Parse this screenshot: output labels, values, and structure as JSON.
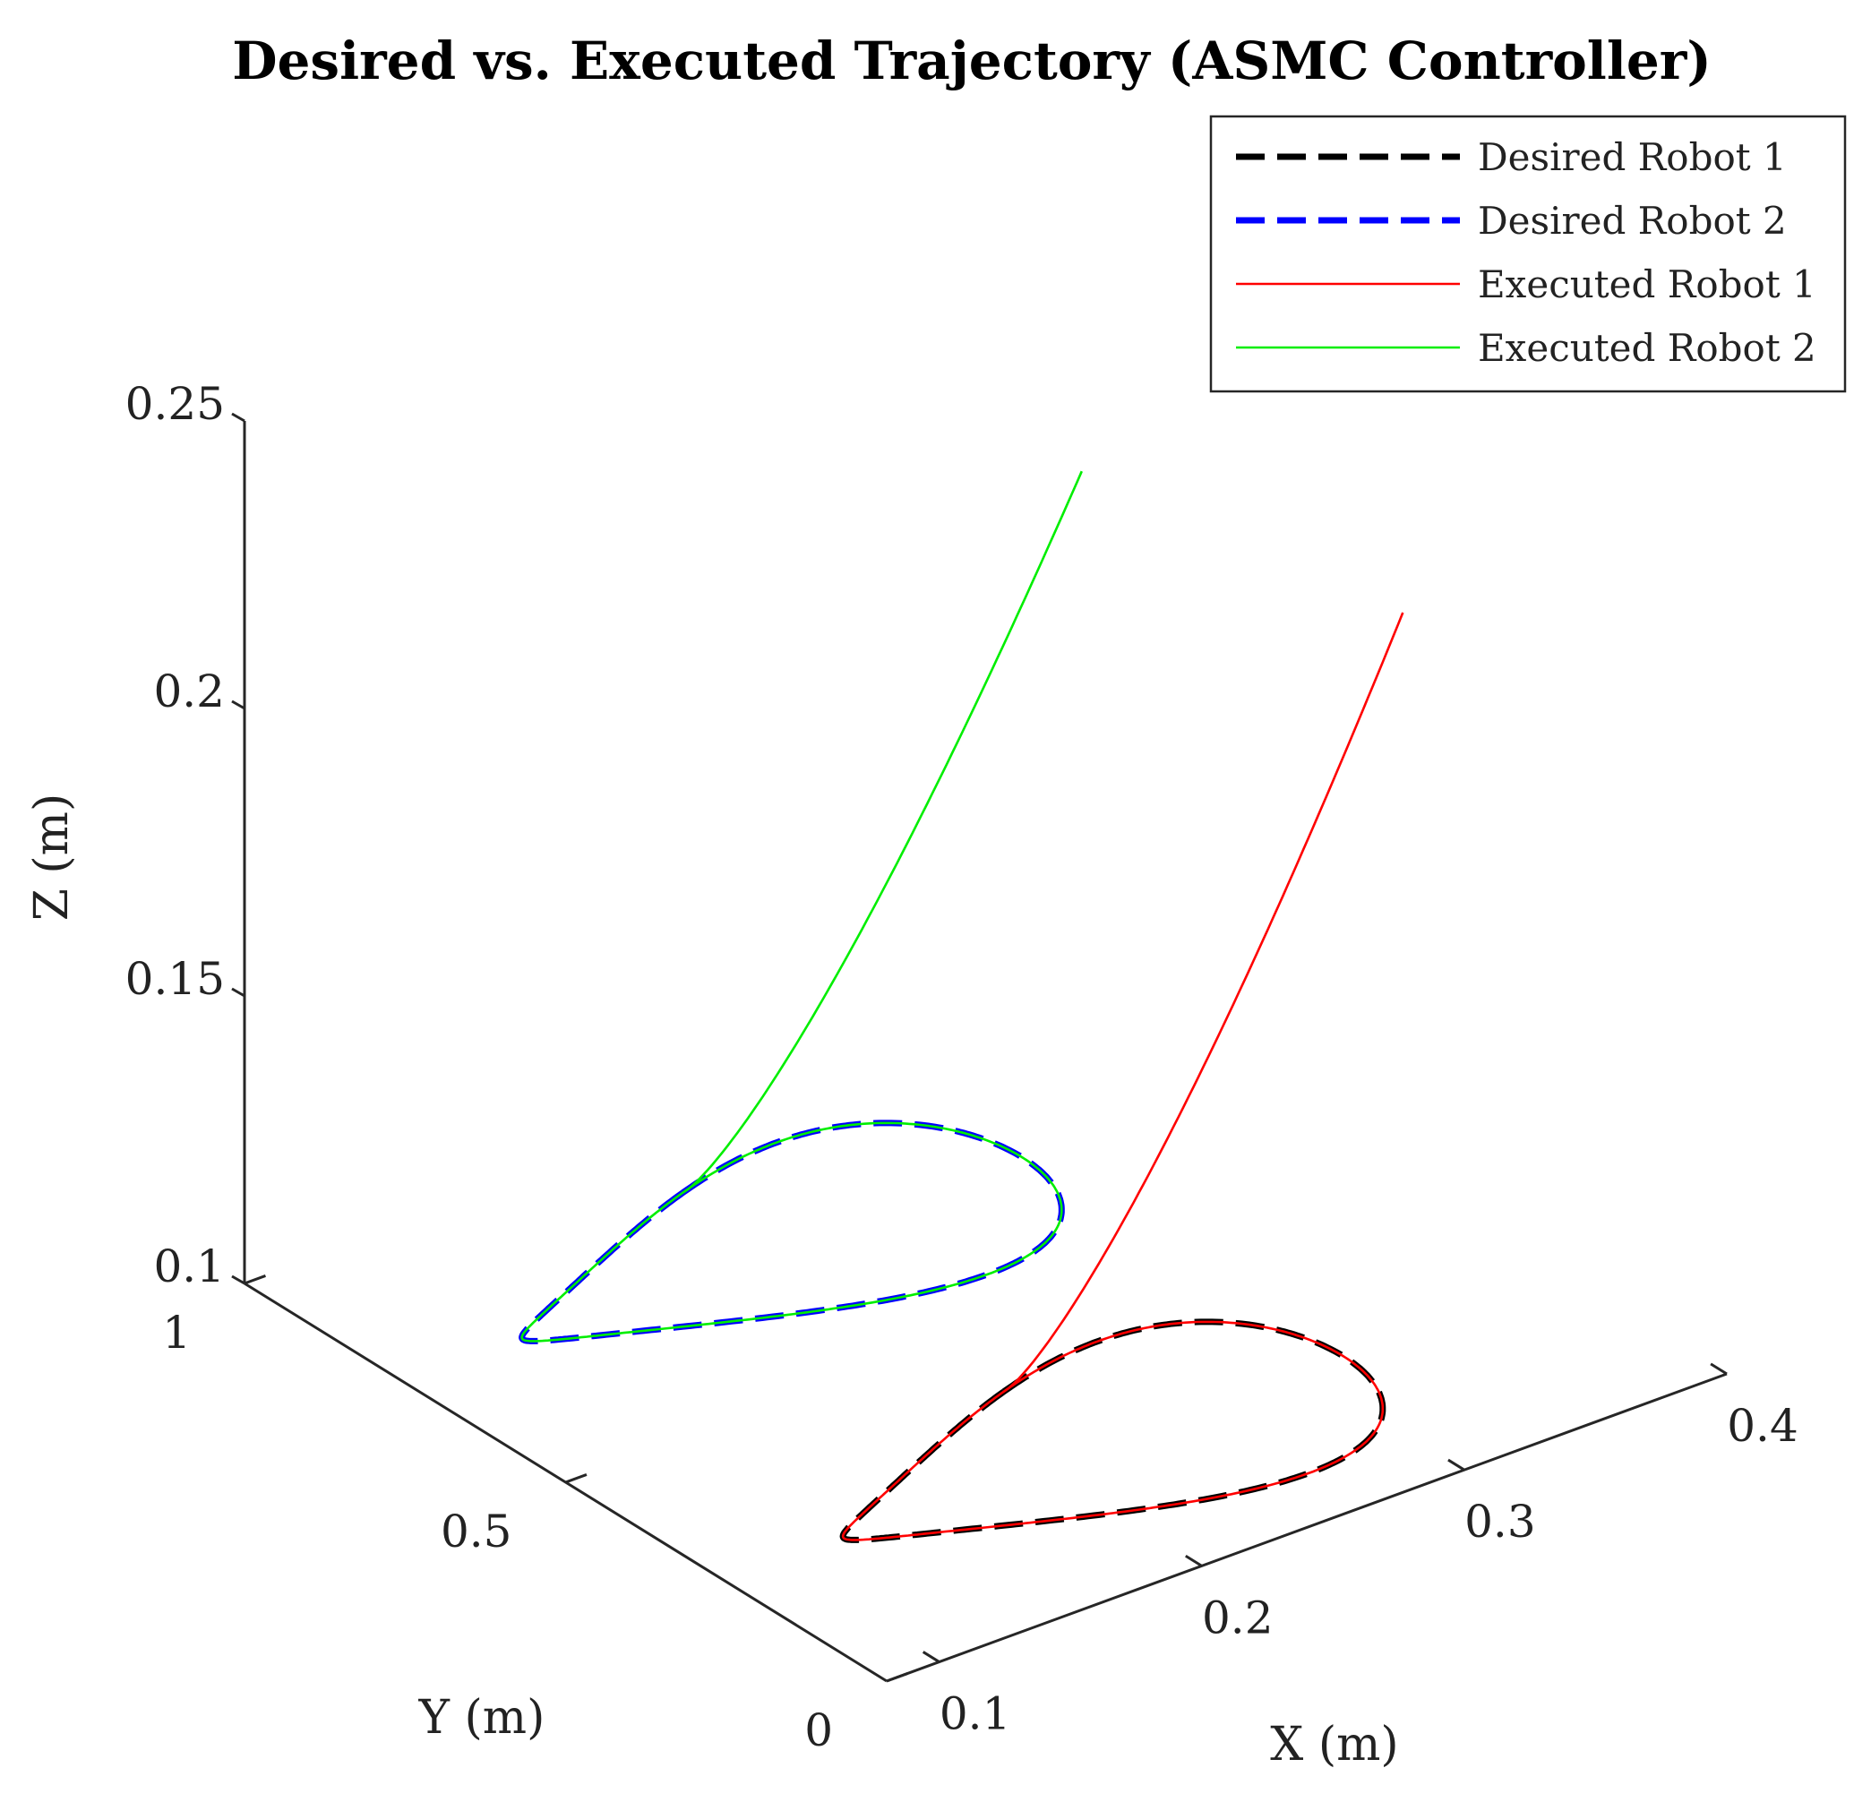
{
  "chart_data": {
    "type": "line3d",
    "title": "Desired vs. Executed Trajectory (ASMC Controller)",
    "xlabel": "X (m)",
    "ylabel": "Y (m)",
    "zlabel": "Z (m)",
    "xlim": [
      0.08,
      0.4
    ],
    "ylim": [
      0,
      1
    ],
    "zlim": [
      0.1,
      0.25
    ],
    "x_ticks": [
      {
        "value": 0.1,
        "label": "0.1"
      },
      {
        "value": 0.2,
        "label": "0.2"
      },
      {
        "value": 0.3,
        "label": "0.3"
      },
      {
        "value": 0.4,
        "label": "0.4"
      }
    ],
    "y_ticks": [
      {
        "value": 0,
        "label": "0"
      },
      {
        "value": 0.5,
        "label": "0.5"
      },
      {
        "value": 1,
        "label": "1"
      }
    ],
    "z_ticks": [
      {
        "value": 0.1,
        "label": "0.1"
      },
      {
        "value": 0.15,
        "label": "0.15"
      },
      {
        "value": 0.2,
        "label": "0.2"
      },
      {
        "value": 0.25,
        "label": "0.25"
      }
    ],
    "legend_position": "top-right",
    "series": [
      {
        "name": "Desired Robot 1",
        "color": "#000000",
        "style": "dashed",
        "robot": 1,
        "phase": "loop",
        "x_center": 0.22,
        "y_center": 0.25,
        "z": 0.1
      },
      {
        "name": "Desired Robot 2",
        "color": "#0000ff",
        "style": "dashed",
        "robot": 2,
        "phase": "loop",
        "x_center": 0.22,
        "y_center": 0.75,
        "z": 0.1
      },
      {
        "name": "Executed Robot 1",
        "color": "#ff0000",
        "style": "solid",
        "robot": 1,
        "phase": "full",
        "x_center": 0.22,
        "y_center": 0.25,
        "z": 0.1,
        "start": {
          "x": 0.35,
          "y": 0.3,
          "z": 0.22
        }
      },
      {
        "name": "Executed Robot 2",
        "color": "#00ee00",
        "style": "solid",
        "robot": 2,
        "phase": "full",
        "x_center": 0.22,
        "y_center": 0.75,
        "z": 0.1,
        "start": {
          "x": 0.35,
          "y": 0.8,
          "z": 0.21
        }
      }
    ]
  }
}
